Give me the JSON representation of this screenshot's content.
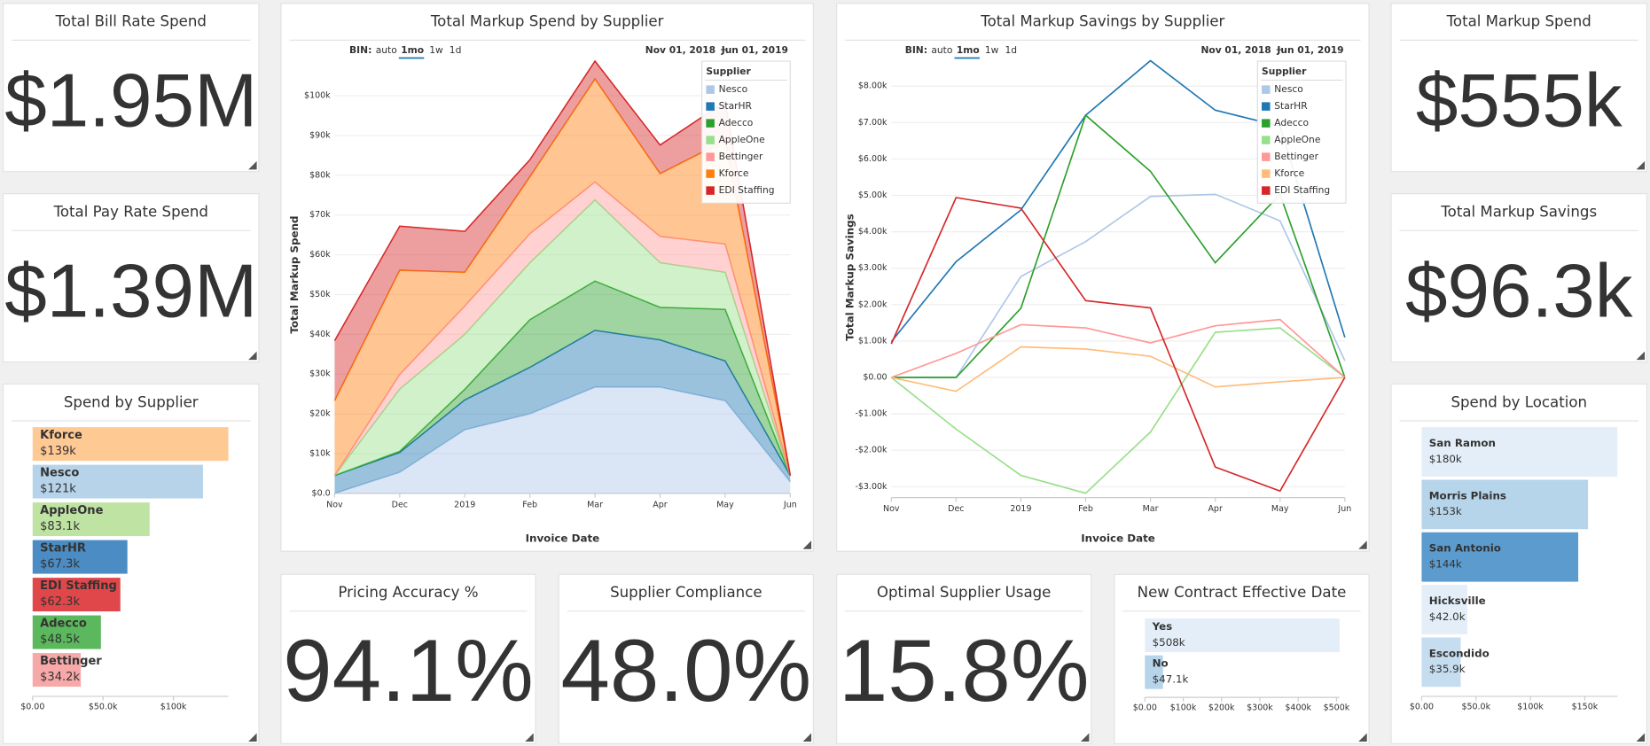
{
  "kpis": [
    {
      "title": "Total Bill Rate Spend",
      "value": "$1.95M",
      "color": "#1f77b4"
    },
    {
      "title": "Total Pay Rate Spend",
      "value": "$1.39M",
      "color": "#1f77b4"
    },
    {
      "title": "Total Markup Spend",
      "value": "$555k",
      "color": "#1f77b4"
    },
    {
      "title": "Total Markup Savings",
      "value": "$96.3k",
      "color": "#ff7f0e"
    },
    {
      "title": "Pricing Accuracy %",
      "value": "94.1%",
      "color": "#2ca02c"
    },
    {
      "title": "Supplier Compliance",
      "value": "48.0%",
      "color": "#ff7f0e"
    },
    {
      "title": "Optimal Supplier Usage",
      "value": "15.8%",
      "color": "#d62728"
    }
  ],
  "chart_data": [
    {
      "type": "bar",
      "orientation": "horizontal",
      "title": "Spend by Supplier",
      "categories": [
        "Kforce",
        "Nesco",
        "AppleOne",
        "StarHR",
        "EDI Staffing",
        "Adecco",
        "Bettinger"
      ],
      "values": [
        139000,
        121000,
        83100,
        67300,
        62300,
        48500,
        34200
      ],
      "value_labels": [
        "$139k",
        "$121k",
        "$83.1k",
        "$67.3k",
        "$62.3k",
        "$48.5k",
        "$34.2k"
      ],
      "colors": [
        "#ffc994",
        "#b7d3ea",
        "#bfe3a3",
        "#4a8cc3",
        "#e0474a",
        "#5cb85c",
        "#f7a8a8"
      ],
      "xlim": [
        0,
        139000
      ],
      "xticks": [
        {
          "value": 0,
          "label": "$0.00"
        },
        {
          "value": 50000,
          "label": "$50.0k"
        },
        {
          "value": 100000,
          "label": "$100k"
        }
      ]
    },
    {
      "type": "stacked_area",
      "title": "Total Markup Spend by Supplier",
      "bin_label": "BIN:",
      "bin_options": [
        "auto",
        "1mo",
        "1w",
        "1d"
      ],
      "bin_selected": 1,
      "date_range": [
        "Nov 01, 2018",
        "Jun 01, 2019"
      ],
      "x_label": "Invoice Date",
      "y_label": "Total Markup Spend",
      "legend_title": "Supplier",
      "legend": "top-right",
      "grid": true,
      "categories": [
        "Nov",
        "Dec",
        "2019",
        "Feb",
        "Mar",
        "Apr",
        "May",
        "Jun"
      ],
      "series": [
        {
          "name": "Nesco",
          "color": "#aec7e8",
          "values": [
            0,
            5300,
            16000,
            20000,
            26700,
            26700,
            23300,
            2900
          ]
        },
        {
          "name": "StarHR",
          "color": "#1f77b4",
          "values": [
            4500,
            5000,
            7500,
            11700,
            14300,
            11900,
            10000,
            1600
          ]
        },
        {
          "name": "Adecco",
          "color": "#2ca02c",
          "values": [
            0,
            300,
            2700,
            12000,
            12400,
            8200,
            13000,
            0
          ]
        },
        {
          "name": "AppleOne",
          "color": "#98df8a",
          "values": [
            0,
            15600,
            13800,
            14300,
            20400,
            11200,
            9300,
            0
          ]
        },
        {
          "name": "Bettinger",
          "color": "#ff9896",
          "values": [
            0,
            3700,
            7100,
            7300,
            4500,
            6600,
            7100,
            0
          ]
        },
        {
          "name": "Kforce",
          "color": "#ff7f0e",
          "values": [
            18800,
            26200,
            8500,
            14300,
            25900,
            15800,
            26000,
            0
          ]
        },
        {
          "name": "EDI Staffing",
          "color": "#d62728",
          "values": [
            15100,
            11100,
            10300,
            4300,
            4500,
            7200,
            9800,
            0
          ]
        }
      ],
      "ylim": [
        0,
        110000
      ],
      "yticks": [
        {
          "value": 0,
          "label": "$0.0"
        },
        {
          "value": 10000,
          "label": "$10k"
        },
        {
          "value": 20000,
          "label": "$20k"
        },
        {
          "value": 30000,
          "label": "$30k"
        },
        {
          "value": 40000,
          "label": "$40k"
        },
        {
          "value": 50000,
          "label": "$50k"
        },
        {
          "value": 60000,
          "label": "$60k"
        },
        {
          "value": 70000,
          "label": "$70k"
        },
        {
          "value": 80000,
          "label": "$80k"
        },
        {
          "value": 90000,
          "label": "$90k"
        },
        {
          "value": 100000,
          "label": "$100k"
        }
      ]
    },
    {
      "type": "line",
      "title": "Total Markup Savings by Supplier",
      "bin_label": "BIN:",
      "bin_options": [
        "auto",
        "1mo",
        "1w",
        "1d"
      ],
      "bin_selected": 1,
      "date_range": [
        "Nov 01, 2018",
        "Jun 01, 2019"
      ],
      "x_label": "Invoice Date",
      "y_label": "Total Markup Savings",
      "legend_title": "Supplier",
      "legend": "top-right",
      "grid": true,
      "categories": [
        "Nov",
        "Dec",
        "2019",
        "Feb",
        "Mar",
        "Apr",
        "May",
        "Jun"
      ],
      "series": [
        {
          "name": "Nesco",
          "color": "#aec7e8",
          "values": [
            0,
            0,
            2770,
            3730,
            4970,
            5030,
            4300,
            460
          ]
        },
        {
          "name": "StarHR",
          "color": "#1f77b4",
          "values": [
            980,
            3180,
            4600,
            7200,
            8700,
            7340,
            6900,
            1100
          ]
        },
        {
          "name": "Adecco",
          "color": "#2ca02c",
          "values": [
            0,
            0,
            1900,
            7200,
            5660,
            3150,
            5030,
            0
          ]
        },
        {
          "name": "AppleOne",
          "color": "#98df8a",
          "values": [
            0,
            -1420,
            -2690,
            -3180,
            -1500,
            1240,
            1360,
            0
          ]
        },
        {
          "name": "Bettinger",
          "color": "#ff9896",
          "values": [
            0,
            660,
            1450,
            1360,
            950,
            1420,
            1590,
            0
          ]
        },
        {
          "name": "Kforce",
          "color": "#ffbb78",
          "values": [
            0,
            -380,
            840,
            780,
            580,
            -260,
            -120,
            0
          ]
        },
        {
          "name": "EDI Staffing",
          "color": "#d62728",
          "values": [
            920,
            4940,
            4650,
            2110,
            1910,
            -2460,
            -3120,
            0
          ]
        }
      ],
      "ylim": [
        -3300,
        8800
      ],
      "yticks": [
        {
          "value": -3000,
          "label": "-$3.00k"
        },
        {
          "value": -2000,
          "label": "-$2.00k"
        },
        {
          "value": -1000,
          "label": "-$1.00k"
        },
        {
          "value": 0,
          "label": "$0.00"
        },
        {
          "value": 1000,
          "label": "$1.00k"
        },
        {
          "value": 2000,
          "label": "$2.00k"
        },
        {
          "value": 3000,
          "label": "$3.00k"
        },
        {
          "value": 4000,
          "label": "$4.00k"
        },
        {
          "value": 5000,
          "label": "$5.00k"
        },
        {
          "value": 6000,
          "label": "$6.00k"
        },
        {
          "value": 7000,
          "label": "$7.00k"
        },
        {
          "value": 8000,
          "label": "$8.00k"
        }
      ]
    },
    {
      "type": "bar",
      "orientation": "horizontal",
      "title": "New Contract Effective Date",
      "categories": [
        "Yes",
        "No"
      ],
      "values": [
        508000,
        47100
      ],
      "value_labels": [
        "$508k",
        "$47.1k"
      ],
      "colors": [
        "#e3eef8",
        "#b6d4ea"
      ],
      "xlim": [
        0,
        508000
      ],
      "xticks": [
        {
          "value": 0,
          "label": "$0.00"
        },
        {
          "value": 100000,
          "label": "$100k"
        },
        {
          "value": 200000,
          "label": "$200k"
        },
        {
          "value": 300000,
          "label": "$300k"
        },
        {
          "value": 400000,
          "label": "$400k"
        },
        {
          "value": 500000,
          "label": "$500k"
        }
      ]
    },
    {
      "type": "bar",
      "orientation": "horizontal",
      "title": "Spend by Location",
      "categories": [
        "San Ramon",
        "Morris Plains",
        "San Antonio",
        "Hicksville",
        "Escondido"
      ],
      "values": [
        180000,
        153000,
        144000,
        42000,
        35900
      ],
      "value_labels": [
        "$180k",
        "$153k",
        "$144k",
        "$42.0k",
        "$35.9k"
      ],
      "colors": [
        "#e3eef8",
        "#b6d4ea",
        "#5b9bcd",
        "#e3eef8",
        "#c6dcef"
      ],
      "xlim": [
        0,
        180000
      ],
      "xticks": [
        {
          "value": 0,
          "label": "$0.00"
        },
        {
          "value": 50000,
          "label": "$50.0k"
        },
        {
          "value": 100000,
          "label": "$100k"
        },
        {
          "value": 150000,
          "label": "$150k"
        }
      ]
    }
  ]
}
